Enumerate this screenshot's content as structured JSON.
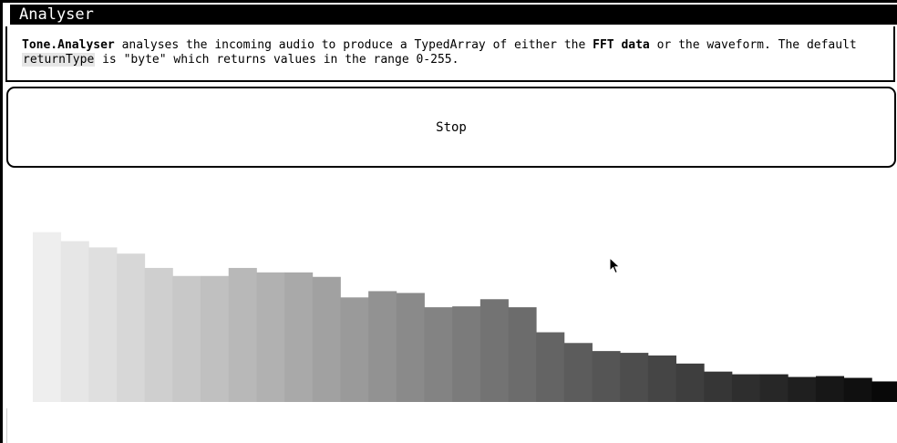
{
  "header": {
    "title": "Analyser"
  },
  "description": {
    "part1_bold": "Tone.Analyser",
    "part2": " analyses the incoming audio to produce a TypedArray of either the ",
    "part3_bold": "FFT data",
    "part4": " or the waveform. The default ",
    "part5_code": "returnType",
    "part6": " is \"byte\" which returns values in the range 0-255."
  },
  "controls": {
    "stop_label": "Stop"
  },
  "chart_data": {
    "type": "bar",
    "values": [
      190,
      180,
      173,
      166,
      150,
      141,
      141,
      150,
      145,
      145,
      140,
      117,
      124,
      122,
      106,
      107,
      115,
      106,
      78,
      66,
      57,
      55,
      52,
      43,
      34,
      31,
      31,
      28,
      29,
      27,
      23
    ],
    "ylim": [
      0,
      255
    ],
    "grid": false
  }
}
